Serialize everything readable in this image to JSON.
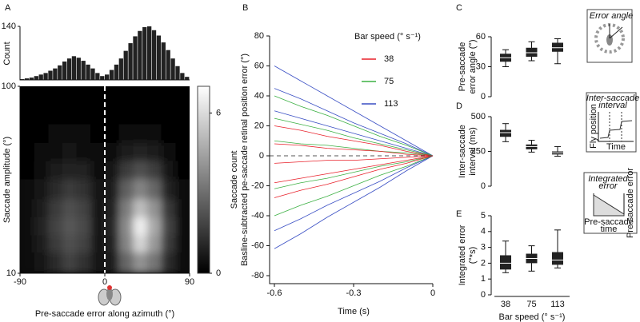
{
  "chart_data": [
    {
      "type": "histogram",
      "panel": "A",
      "ylabel": "Count",
      "xlim": [
        -90,
        90
      ],
      "ylim": [
        0,
        140
      ],
      "yticks": [
        140
      ],
      "color": "#222222",
      "bins": [
        -90,
        -85,
        -80,
        -75,
        -70,
        -65,
        -60,
        -55,
        -50,
        -45,
        -40,
        -35,
        -30,
        -25,
        -20,
        -15,
        -10,
        -5,
        0,
        5,
        10,
        15,
        20,
        25,
        30,
        35,
        40,
        45,
        50,
        55,
        60,
        65,
        70,
        75,
        80,
        85,
        90
      ],
      "counts": [
        2,
        4,
        6,
        10,
        14,
        18,
        24,
        30,
        38,
        48,
        56,
        62,
        58,
        50,
        40,
        30,
        18,
        10,
        14,
        26,
        40,
        56,
        76,
        96,
        114,
        128,
        138,
        140,
        130,
        116,
        98,
        78,
        56,
        36,
        18,
        8
      ]
    },
    {
      "type": "heatmap",
      "xlabel": "Pre-saccade error along azimuth (°)",
      "ylabel": "Saccade amplitude (°)",
      "colorbar_label": "Saccade count",
      "xlim": [
        -90,
        90
      ],
      "xticks": [
        -90,
        0,
        90
      ],
      "ylim": [
        10,
        100
      ],
      "yticks": [
        10,
        100
      ],
      "log_y": true,
      "clim": [
        0,
        7
      ],
      "cticks": [
        0,
        6
      ],
      "xbins": [
        -90,
        -75,
        -60,
        -45,
        -30,
        -15,
        0,
        15,
        30,
        45,
        60,
        75,
        90
      ],
      "ybins": [
        10,
        13,
        16,
        20,
        25,
        32,
        40,
        50,
        63,
        79,
        100
      ],
      "values": [
        [
          0.3,
          0.6,
          1.2,
          1.8,
          1.4,
          0.5,
          0.8,
          2.8,
          4.0,
          3.2,
          1.2,
          0.3
        ],
        [
          0.4,
          0.8,
          1.6,
          2.2,
          1.8,
          0.6,
          1.0,
          3.6,
          5.8,
          4.2,
          1.6,
          0.4
        ],
        [
          0.4,
          0.9,
          1.8,
          2.4,
          2.0,
          0.7,
          1.1,
          3.8,
          6.5,
          4.6,
          1.8,
          0.4
        ],
        [
          0.3,
          0.8,
          1.6,
          2.2,
          1.8,
          0.6,
          1.0,
          3.4,
          5.2,
          4.0,
          1.5,
          0.3
        ],
        [
          0.2,
          0.6,
          1.2,
          1.6,
          1.4,
          0.5,
          0.8,
          2.6,
          3.6,
          2.8,
          1.0,
          0.2
        ],
        [
          0.1,
          0.4,
          0.8,
          1.0,
          0.9,
          0.3,
          0.5,
          1.6,
          2.2,
          1.7,
          0.6,
          0.1
        ],
        [
          0.1,
          0.2,
          0.4,
          0.5,
          0.4,
          0.2,
          0.3,
          0.8,
          1.0,
          0.8,
          0.3,
          0.1
        ],
        [
          0,
          0.1,
          0.2,
          0.2,
          0.2,
          0.1,
          0.1,
          0.3,
          0.4,
          0.3,
          0.1,
          0
        ],
        [
          0,
          0,
          0.1,
          0.1,
          0.1,
          0,
          0,
          0.1,
          0.1,
          0.1,
          0,
          0
        ],
        [
          0,
          0,
          0,
          0,
          0,
          0,
          0,
          0,
          0,
          0,
          0,
          0
        ]
      ]
    },
    {
      "type": "line",
      "panel": "B",
      "xlabel": "Time (s)",
      "ylabel": "Basline-subtracted  pe-saccade retinal position  error (°)",
      "legend_title": "Bar speed (° s⁻¹)",
      "xlim": [
        -0.6,
        0
      ],
      "xticks": [
        -0.6,
        -0.3,
        0
      ],
      "ylim": [
        -80,
        80
      ],
      "yticks": [
        -80,
        -60,
        -40,
        -20,
        0,
        20,
        40,
        60,
        80
      ],
      "x": [
        -0.6,
        -0.5,
        -0.4,
        -0.3,
        -0.2,
        -0.1,
        0
      ],
      "series": [
        {
          "name": "38",
          "color": "#e8202a",
          "lines": [
            [
              20,
              17,
              13,
              10,
              7,
              3,
              0
            ],
            [
              8,
              7,
              5,
              4,
              3,
              1,
              0
            ],
            [
              -5,
              -4,
              -3,
              -3,
              -2,
              -1,
              0
            ],
            [
              -18,
              -15,
              -12,
              -9,
              -6,
              -3,
              0
            ],
            [
              -28,
              -23,
              -19,
              -14,
              -9,
              -5,
              0
            ]
          ]
        },
        {
          "name": "75",
          "color": "#3cb043",
          "lines": [
            [
              40,
              33,
              27,
              20,
              13,
              7,
              0
            ],
            [
              25,
              21,
              17,
              12,
              8,
              4,
              0
            ],
            [
              -22,
              -18,
              -15,
              -11,
              -7,
              -4,
              0
            ],
            [
              -40,
              -33,
              -27,
              -20,
              -13,
              -7,
              0
            ],
            [
              10,
              8,
              7,
              5,
              3,
              2,
              0
            ]
          ]
        },
        {
          "name": "113",
          "color": "#3a4fc4",
          "lines": [
            [
              60,
              50,
              40,
              30,
              20,
              10,
              0
            ],
            [
              45,
              38,
              30,
              22,
              15,
              8,
              0
            ],
            [
              -50,
              -42,
              -33,
              -25,
              -17,
              -8,
              0
            ],
            [
              -62,
              -52,
              -41,
              -31,
              -21,
              -10,
              0
            ],
            [
              30,
              25,
              20,
              15,
              10,
              5,
              0
            ]
          ]
        }
      ]
    },
    {
      "type": "box",
      "panel": "C",
      "ylabel_lines": [
        "Pre-saccade",
        "error angle (°)"
      ],
      "ylim": [
        0,
        60
      ],
      "yticks": [
        0,
        30,
        60
      ],
      "boxes": [
        {
          "min": 30,
          "q1": 35,
          "median": 39,
          "q3": 43,
          "max": 47
        },
        {
          "min": 36,
          "q1": 40,
          "median": 44,
          "q3": 49,
          "max": 55
        },
        {
          "min": 33,
          "q1": 45,
          "median": 49,
          "q3": 54,
          "max": 58
        }
      ],
      "inset": {
        "lines": [
          "Error angle"
        ]
      }
    },
    {
      "type": "box",
      "panel": "D",
      "ylabel_lines": [
        "Inter-saccade",
        "interval (ms)"
      ],
      "ylim": [
        0,
        500
      ],
      "yticks": [
        0,
        250,
        500
      ],
      "boxes": [
        {
          "min": 320,
          "q1": 355,
          "median": 385,
          "q3": 405,
          "max": 450
        },
        {
          "min": 245,
          "q1": 265,
          "median": 285,
          "q3": 300,
          "max": 330
        },
        {
          "min": 215,
          "q1": 228,
          "median": 240,
          "q3": 250,
          "max": 285
        }
      ],
      "inset": {
        "lines": [
          "Inter-saccade",
          "interval"
        ],
        "ylabel": "Fly position",
        "xlabel": "Time"
      }
    },
    {
      "type": "box",
      "panel": "E",
      "ylabel_lines": [
        "Integrated error",
        "(°*s)"
      ],
      "xlabel": "Bar speed (° s⁻¹)",
      "categories": [
        "38",
        "75",
        "113"
      ],
      "ylim": [
        0,
        5
      ],
      "yticks": [
        0,
        1,
        2,
        3,
        4,
        5
      ],
      "boxes": [
        {
          "min": 1.4,
          "q1": 1.6,
          "median": 2.0,
          "q3": 2.5,
          "max": 3.4
        },
        {
          "min": 1.5,
          "q1": 2.0,
          "median": 2.3,
          "q3": 2.6,
          "max": 3.1
        },
        {
          "min": 1.7,
          "q1": 1.9,
          "median": 2.2,
          "q3": 2.7,
          "max": 4.1
        }
      ],
      "inset": {
        "lines": [
          "Integrated",
          "error"
        ],
        "ylabel": "Pre-saccade error",
        "xlabel_lines": [
          "Pre-saccade",
          "time"
        ]
      }
    }
  ]
}
